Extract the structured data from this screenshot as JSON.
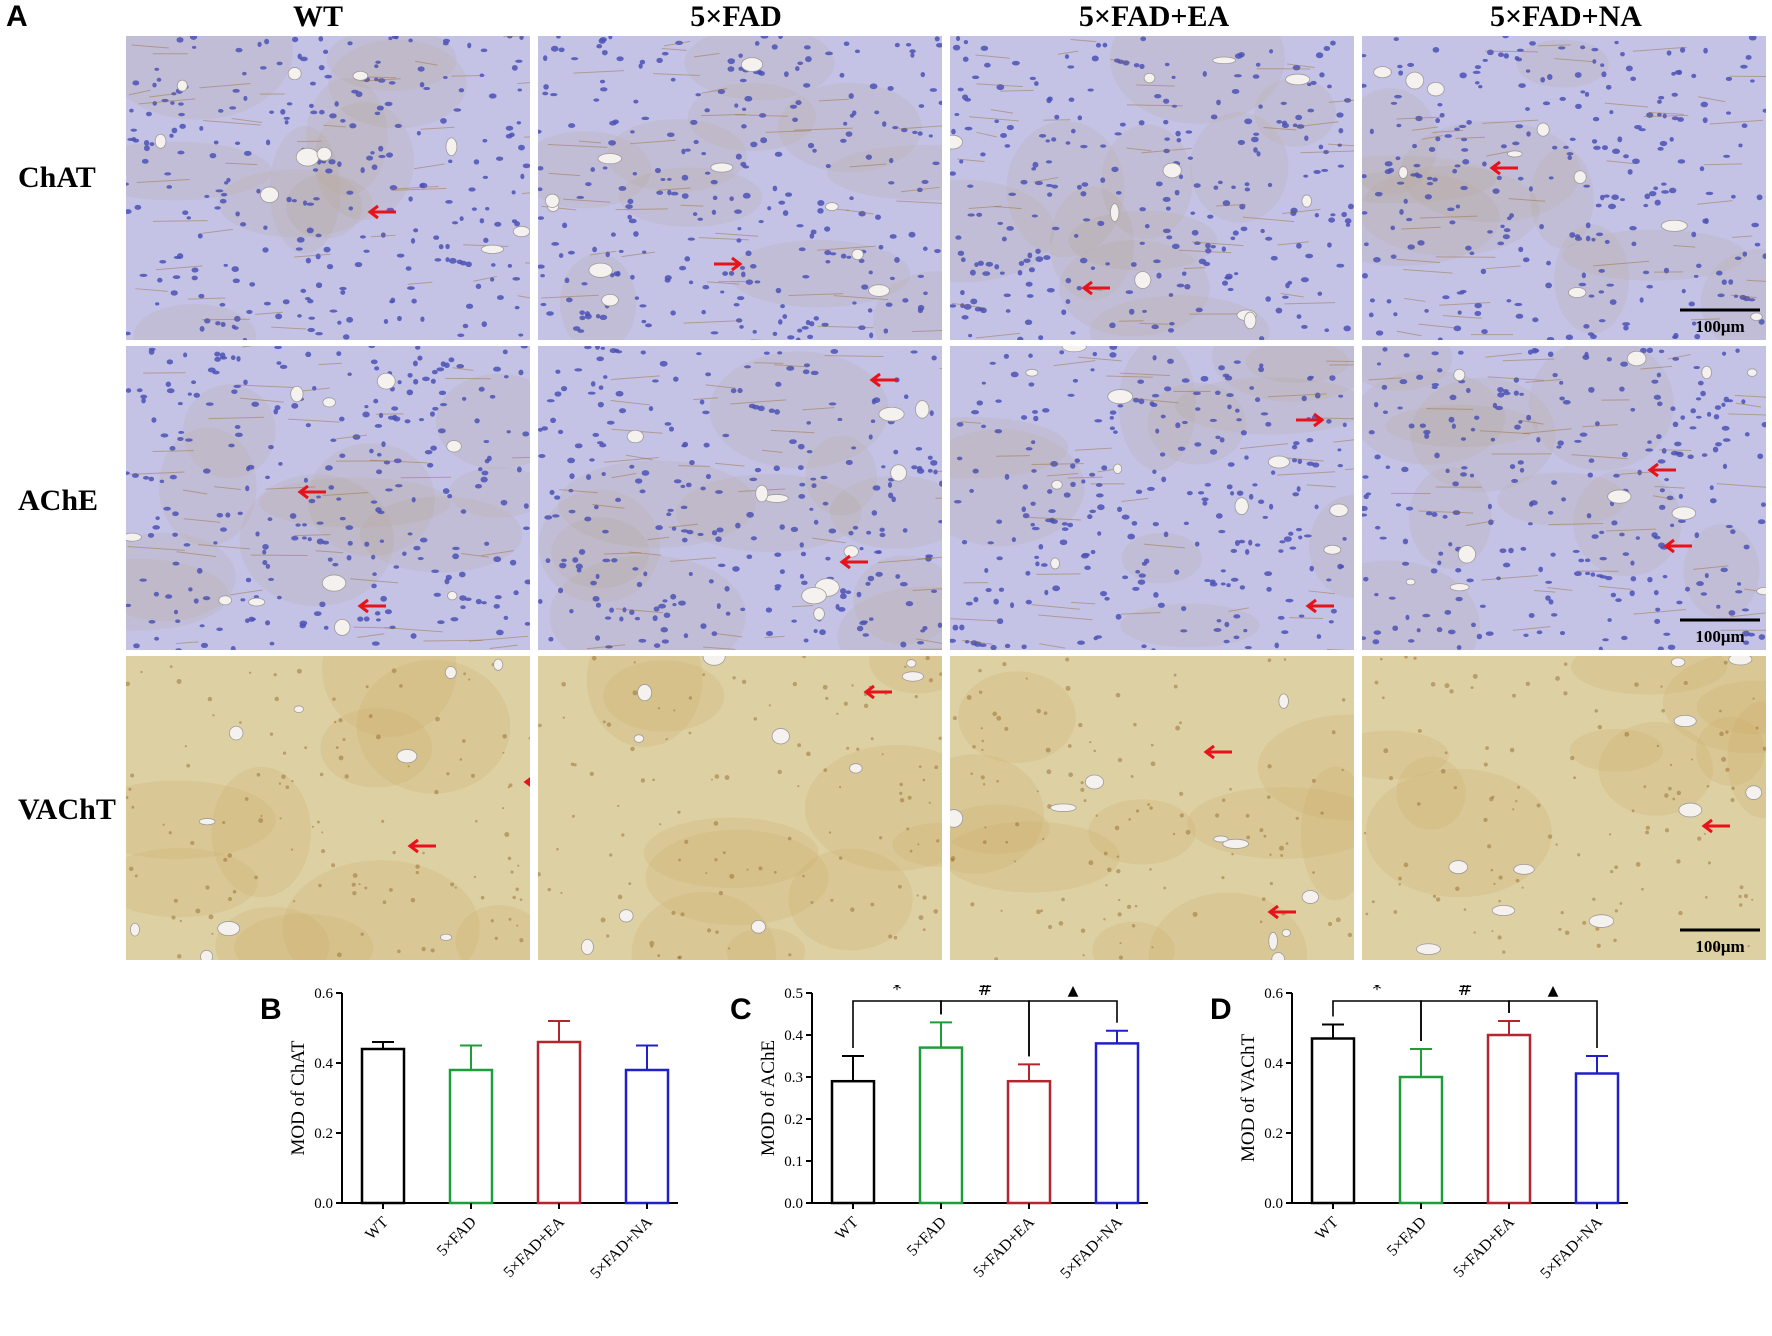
{
  "figure": {
    "panel_a": {
      "letter": "A",
      "columns": [
        "WT",
        "5×FAD",
        "5×FAD+EA",
        "5×FAD+NA"
      ],
      "rows": [
        "ChAT",
        "AChE",
        "VAChT"
      ],
      "scale_bar": "100μm",
      "stain_colors": {
        "hematoxylin_bg": "#c4c3e6",
        "dab_bg": "#ddd1a4",
        "nucleus": "#4b52b5",
        "dab_deposit": "#9a6a2e",
        "arrow": "#e8131a"
      }
    },
    "colors": {
      "WT": "#000000",
      "5×FAD": "#1e9e3a",
      "5×FAD+EA": "#b3262d",
      "5×FAD+NA": "#2020c8"
    }
  },
  "chart_data": [
    {
      "panel": "B",
      "type": "bar",
      "categories": [
        "WT",
        "5×FAD",
        "5×FAD+EA",
        "5×FAD+NA"
      ],
      "values": [
        0.44,
        0.38,
        0.46,
        0.38
      ],
      "errors": [
        0.02,
        0.07,
        0.06,
        0.07
      ],
      "ylabel": "MOD of ChAT",
      "ylim": [
        0,
        0.6
      ],
      "yticks": [
        "0.0",
        "0.2",
        "0.4",
        "0.6"
      ],
      "tick_values": [
        0,
        0.2,
        0.4,
        0.6
      ],
      "significance": []
    },
    {
      "panel": "C",
      "type": "bar",
      "categories": [
        "WT",
        "5×FAD",
        "5×FAD+EA",
        "5×FAD+NA"
      ],
      "values": [
        0.29,
        0.37,
        0.29,
        0.38
      ],
      "errors": [
        0.06,
        0.06,
        0.04,
        0.03
      ],
      "ylabel": "MOD of AChE",
      "ylim": [
        0,
        0.5
      ],
      "yticks": [
        "0.0",
        "0.1",
        "0.2",
        "0.3",
        "0.4",
        "0.5"
      ],
      "tick_values": [
        0,
        0.1,
        0.2,
        0.3,
        0.4,
        0.5
      ],
      "significance": [
        {
          "from": 0,
          "to": 1,
          "symbol": "*"
        },
        {
          "from": 1,
          "to": 2,
          "symbol": "#"
        },
        {
          "from": 2,
          "to": 3,
          "symbol": "▲"
        }
      ]
    },
    {
      "panel": "D",
      "type": "bar",
      "categories": [
        "WT",
        "5×FAD",
        "5×FAD+EA",
        "5×FAD+NA"
      ],
      "values": [
        0.47,
        0.36,
        0.48,
        0.37
      ],
      "errors": [
        0.04,
        0.08,
        0.04,
        0.05
      ],
      "ylabel": "MOD of VAChT",
      "ylim": [
        0,
        0.6
      ],
      "yticks": [
        "0.0",
        "0.2",
        "0.4",
        "0.6"
      ],
      "tick_values": [
        0,
        0.2,
        0.4,
        0.6
      ],
      "significance": [
        {
          "from": 0,
          "to": 1,
          "symbol": "*"
        },
        {
          "from": 1,
          "to": 2,
          "symbol": "#"
        },
        {
          "from": 2,
          "to": 3,
          "symbol": "▲"
        }
      ]
    }
  ]
}
